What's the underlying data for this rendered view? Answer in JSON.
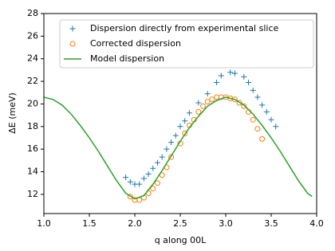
{
  "chart_data": {
    "type": "scatter-line",
    "xlabel": "q along 00L",
    "ylabel": "ΔE (meV)",
    "xlim": [
      1.0,
      4.0
    ],
    "ylim": [
      10.3,
      28
    ],
    "xticks": [
      {
        "value": 1,
        "label": "1.0"
      },
      {
        "value": 1.5,
        "label": "1.5"
      },
      {
        "value": 2,
        "label": "2.0"
      },
      {
        "value": 2.5,
        "label": "2.5"
      },
      {
        "value": 3,
        "label": "3.0"
      },
      {
        "value": 3.5,
        "label": "3.5"
      },
      {
        "value": 4,
        "label": "4.0"
      }
    ],
    "yticks": [
      12,
      14,
      16,
      18,
      20,
      22,
      24,
      26,
      28
    ],
    "legend": "upper right",
    "series": [
      {
        "name": "Dispersion directly from experimental slice",
        "color": "#1f77b4",
        "marker": "plus",
        "x": [
          1.9,
          1.95,
          2.0,
          2.05,
          2.1,
          2.15,
          2.2,
          2.25,
          2.3,
          2.35,
          2.4,
          2.45,
          2.5,
          2.55,
          2.6,
          2.7,
          2.8,
          2.9,
          2.95,
          3.05,
          3.1,
          3.2,
          3.25,
          3.3,
          3.35,
          3.4,
          3.45,
          3.5,
          3.55
        ],
        "values": [
          13.5,
          13.1,
          12.9,
          12.9,
          13.4,
          13.8,
          14.3,
          14.8,
          15.3,
          16.0,
          16.6,
          17.2,
          18.0,
          18.5,
          19.2,
          20.1,
          20.9,
          21.9,
          22.5,
          22.8,
          22.7,
          22.4,
          21.9,
          21.2,
          20.6,
          19.9,
          19.3,
          18.6,
          18.0
        ]
      },
      {
        "name": "Corrected dispersion",
        "color": "#ff7f0e",
        "marker": "circle",
        "x": [
          1.95,
          2.0,
          2.05,
          2.1,
          2.15,
          2.2,
          2.25,
          2.3,
          2.35,
          2.4,
          2.5,
          2.55,
          2.6,
          2.65,
          2.7,
          2.75,
          2.8,
          2.85,
          2.9,
          2.95,
          3.0,
          3.05,
          3.1,
          3.15,
          3.2,
          3.25,
          3.3,
          3.35,
          3.4
        ],
        "values": [
          11.8,
          11.5,
          11.5,
          11.7,
          12.1,
          12.5,
          13.0,
          13.7,
          14.4,
          15.3,
          16.5,
          17.4,
          18.1,
          18.6,
          19.3,
          19.8,
          20.2,
          20.4,
          20.6,
          20.6,
          20.6,
          20.5,
          20.4,
          20.1,
          19.8,
          19.3,
          18.6,
          17.8,
          16.9
        ]
      },
      {
        "name": "Model dispersion",
        "color": "#2ca02c",
        "marker": "line",
        "x": [
          1.0,
          1.1,
          1.2,
          1.3,
          1.4,
          1.5,
          1.6,
          1.7,
          1.8,
          1.9,
          2.0,
          2.1,
          2.2,
          2.3,
          2.4,
          2.5,
          2.6,
          2.7,
          2.8,
          2.9,
          3.0,
          3.1,
          3.2,
          3.3,
          3.4,
          3.5,
          3.6,
          3.7,
          3.8,
          3.9,
          3.95
        ],
        "values": [
          20.6,
          20.4,
          19.9,
          19.1,
          18.1,
          17.0,
          15.8,
          14.5,
          13.2,
          12.1,
          11.6,
          11.9,
          12.9,
          14.1,
          15.4,
          16.7,
          17.9,
          18.9,
          19.8,
          20.3,
          20.6,
          20.4,
          19.9,
          19.1,
          18.1,
          17.0,
          15.8,
          14.5,
          13.2,
          12.1,
          11.8
        ]
      }
    ]
  }
}
